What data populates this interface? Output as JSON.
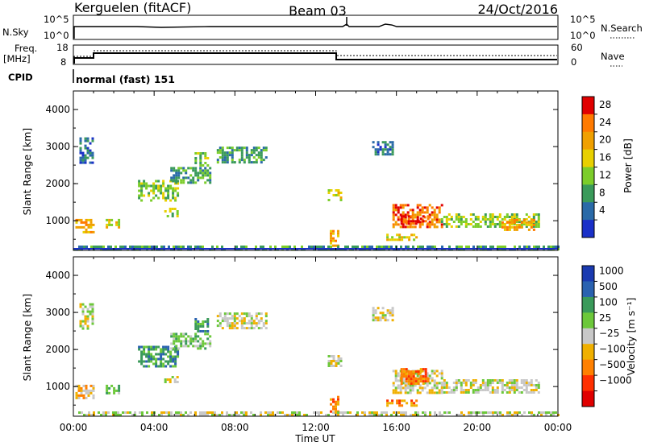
{
  "header": {
    "station": "Kerguelen (fitACF)",
    "beam": "Beam 03",
    "date": "24/Oct/2016"
  },
  "noise_panel": {
    "left_label": "N.Sky",
    "right_label": "N.Search",
    "left_ticks": [
      "10^5",
      "10^0"
    ],
    "right_ticks": [
      "10^5",
      "10^0"
    ]
  },
  "freq_panel": {
    "left_label_top": "Freq.",
    "left_label_unit": "[MHz]",
    "left_ticks": [
      "18",
      "8"
    ],
    "right_label": "Nave",
    "right_ticks": [
      "60",
      "0"
    ],
    "cpid_label": "CPID",
    "program": "normal (fast) 151"
  },
  "power_colorbar": {
    "label": "Power [dB]",
    "ticks": [
      "28",
      "24",
      "20",
      "16",
      "12",
      "8",
      "4"
    ],
    "colors": [
      "#e00000",
      "#ff7a00",
      "#f0a000",
      "#e8d000",
      "#7ccd2a",
      "#3a9a5a",
      "#2a6aa8",
      "#1a30c8"
    ]
  },
  "velocity_colorbar": {
    "label": "Velocity [m s⁻¹]",
    "ticks": [
      "1000",
      "500",
      "100",
      "25",
      "−25",
      "−100",
      "−500",
      "−1000"
    ],
    "colors": [
      "#1a3ab0",
      "#2a62b0",
      "#3a9a5a",
      "#6cc83a",
      "#c8c8c8",
      "#f0b000",
      "#ff8000",
      "#ff3000",
      "#e00000"
    ]
  },
  "chart_data": [
    {
      "type": "heatmap",
      "title": "Power",
      "xlabel": "Time UT",
      "ylabel": "Slant Range [km]",
      "x_ticks": [
        "00:00",
        "04:00",
        "08:00",
        "12:00",
        "16:00",
        "20:00",
        "00:00"
      ],
      "y_ticks": [
        1000,
        2000,
        3000,
        4000
      ],
      "ylim": [
        200,
        4500
      ],
      "xlim_hours": [
        0,
        24
      ],
      "regions": [
        {
          "t": [
            0.1,
            1.0
          ],
          "r": [
            700,
            1050
          ],
          "level": 5
        },
        {
          "t": [
            0.3,
            1.0
          ],
          "r": [
            2550,
            3250
          ],
          "level": 1
        },
        {
          "t": [
            1.6,
            2.2
          ],
          "r": [
            850,
            1050
          ],
          "level": 4
        },
        {
          "t": [
            3.2,
            5.2
          ],
          "r": [
            1550,
            2100
          ],
          "level": 3
        },
        {
          "t": [
            4.5,
            5.1
          ],
          "r": [
            1150,
            1350
          ],
          "level": 3
        },
        {
          "t": [
            4.8,
            6.8
          ],
          "r": [
            2000,
            2450
          ],
          "level": 2
        },
        {
          "t": [
            6.0,
            6.6
          ],
          "r": [
            2500,
            2850
          ],
          "level": 3
        },
        {
          "t": [
            7.1,
            9.6
          ],
          "r": [
            2550,
            3000
          ],
          "level": 2
        },
        {
          "t": [
            12.6,
            13.2
          ],
          "r": [
            1550,
            1850
          ],
          "level": 4
        },
        {
          "t": [
            12.7,
            13.1
          ],
          "r": [
            350,
            750
          ],
          "level": 5
        },
        {
          "t": [
            14.8,
            15.8
          ],
          "r": [
            2800,
            3150
          ],
          "level": 1
        },
        {
          "t": [
            15.8,
            18.2
          ],
          "r": [
            850,
            1450
          ],
          "level": 6
        },
        {
          "t": [
            16.2,
            17.6
          ],
          "r": [
            950,
            1150
          ],
          "level": 7
        },
        {
          "t": [
            15.5,
            17.0
          ],
          "r": [
            480,
            650
          ],
          "level": 4
        },
        {
          "t": [
            18.2,
            23.0
          ],
          "r": [
            850,
            1200
          ],
          "level": 3
        },
        {
          "t": [
            21.2,
            22.8
          ],
          "r": [
            780,
            1050
          ],
          "level": 5
        },
        {
          "t": [
            0.0,
            24.0
          ],
          "r": [
            200,
            330
          ],
          "level": 2
        }
      ]
    },
    {
      "type": "heatmap",
      "title": "Velocity",
      "xlabel": "Time UT",
      "ylabel": "Slant Range [km]",
      "x_ticks": [
        "00:00",
        "04:00",
        "08:00",
        "12:00",
        "16:00",
        "20:00",
        "00:00"
      ],
      "y_ticks": [
        1000,
        2000,
        3000,
        4000
      ],
      "ylim": [
        200,
        4500
      ],
      "xlim_hours": [
        0,
        24
      ],
      "regions": [
        {
          "t": [
            0.1,
            1.0
          ],
          "r": [
            700,
            1050
          ],
          "level": 5
        },
        {
          "t": [
            0.3,
            1.0
          ],
          "r": [
            2550,
            3250
          ],
          "level": 4
        },
        {
          "t": [
            1.6,
            2.2
          ],
          "r": [
            850,
            1050
          ],
          "level": 3
        },
        {
          "t": [
            3.2,
            5.2
          ],
          "r": [
            1550,
            2100
          ],
          "level": 2
        },
        {
          "t": [
            4.5,
            5.1
          ],
          "r": [
            1150,
            1350
          ],
          "level": 4
        },
        {
          "t": [
            4.8,
            6.8
          ],
          "r": [
            2000,
            2450
          ],
          "level": 3
        },
        {
          "t": [
            6.0,
            6.6
          ],
          "r": [
            2500,
            2850
          ],
          "level": 2
        },
        {
          "t": [
            7.1,
            9.6
          ],
          "r": [
            2550,
            3000
          ],
          "level": 4
        },
        {
          "t": [
            12.6,
            13.2
          ],
          "r": [
            1550,
            1850
          ],
          "level": 4
        },
        {
          "t": [
            12.7,
            13.1
          ],
          "r": [
            350,
            750
          ],
          "level": 6
        },
        {
          "t": [
            14.8,
            15.8
          ],
          "r": [
            2800,
            3150
          ],
          "level": 4
        },
        {
          "t": [
            15.8,
            18.2
          ],
          "r": [
            850,
            1450
          ],
          "level": 4
        },
        {
          "t": [
            16.2,
            17.6
          ],
          "r": [
            1100,
            1500
          ],
          "level": 6
        },
        {
          "t": [
            15.5,
            17.0
          ],
          "r": [
            480,
            650
          ],
          "level": 6
        },
        {
          "t": [
            18.2,
            23.0
          ],
          "r": [
            850,
            1200
          ],
          "level": 4
        },
        {
          "t": [
            0.0,
            24.0
          ],
          "r": [
            200,
            330
          ],
          "level": 4
        }
      ]
    }
  ]
}
